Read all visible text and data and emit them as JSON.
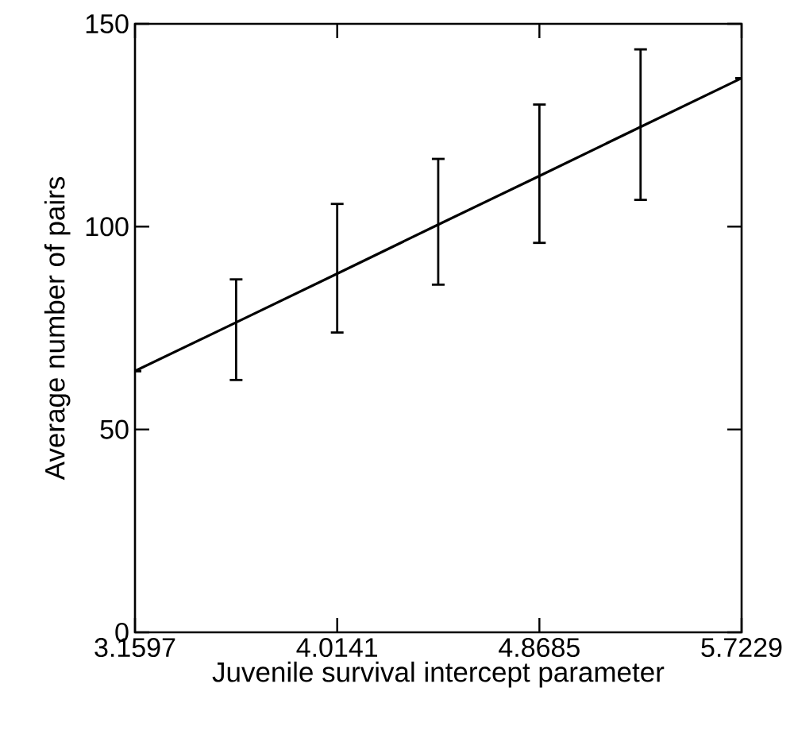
{
  "chart_data": {
    "type": "line",
    "xlabel": "Juvenile survival intercept parameter",
    "ylabel": "Average number of pairs",
    "xlim": [
      3.1597,
      5.7229
    ],
    "ylim": [
      0,
      150
    ],
    "xticks": [
      3.1597,
      4.0141,
      4.8685,
      5.7229
    ],
    "yticks": [
      0,
      50,
      100,
      150
    ],
    "series": [
      {
        "type": "line",
        "color": "#000000",
        "x": [
          3.1597,
          3.587,
          4.0141,
          4.441,
          4.8685,
          5.296,
          5.7229
        ],
        "values": [
          64.4,
          76.4,
          88.4,
          100.5,
          112.5,
          124.6,
          136.6
        ],
        "errors": [
          null,
          [
            62.2,
            87.0
          ],
          [
            73.9,
            105.6
          ],
          [
            85.7,
            116.7
          ],
          [
            96.0,
            130.1
          ],
          [
            106.6,
            143.7
          ],
          null
        ]
      }
    ]
  }
}
